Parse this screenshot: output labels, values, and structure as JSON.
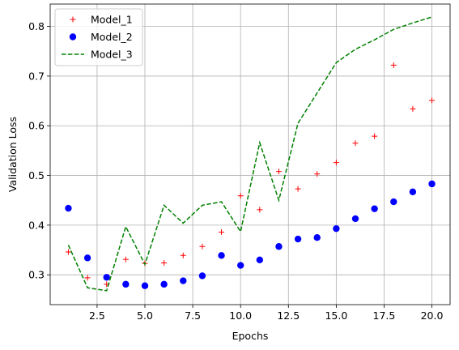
{
  "chart_data": {
    "type": "scatter",
    "xlabel": "Epochs",
    "ylabel": "Validation Loss",
    "xlim": [
      0.05,
      20.95
    ],
    "ylim": [
      0.24,
      0.845
    ],
    "xticks": [
      2.5,
      5.0,
      7.5,
      10.0,
      12.5,
      15.0,
      17.5,
      20.0
    ],
    "xtick_labels": [
      "2.5",
      "5.0",
      "7.5",
      "10.0",
      "12.5",
      "15.0",
      "17.5",
      "20.0"
    ],
    "yticks": [
      0.3,
      0.4,
      0.5,
      0.6,
      0.7,
      0.8
    ],
    "ytick_labels": [
      "0.3",
      "0.4",
      "0.5",
      "0.6",
      "0.7",
      "0.8"
    ],
    "grid": true,
    "legend_position": "top-left",
    "x": [
      1,
      2,
      3,
      4,
      5,
      6,
      7,
      8,
      9,
      10,
      11,
      12,
      13,
      14,
      15,
      16,
      17,
      18,
      19,
      20
    ],
    "series": [
      {
        "name": "Model_1",
        "marker": "plus",
        "color": "#ff0000",
        "values": [
          0.346,
          0.294,
          0.281,
          0.331,
          0.323,
          0.324,
          0.339,
          0.357,
          0.386,
          0.459,
          0.431,
          0.508,
          0.473,
          0.503,
          0.526,
          0.565,
          0.579,
          0.722,
          0.634,
          0.651
        ]
      },
      {
        "name": "Model_2",
        "marker": "circle",
        "color": "#0000ff",
        "values": [
          0.434,
          0.334,
          0.295,
          0.281,
          0.278,
          0.281,
          0.288,
          0.298,
          0.339,
          0.319,
          0.33,
          0.357,
          0.372,
          0.375,
          0.393,
          0.413,
          0.433,
          0.447,
          0.467,
          0.483
        ]
      },
      {
        "name": "Model_3",
        "marker": "dashed-line",
        "color": "#008000",
        "values": [
          0.36,
          0.274,
          0.268,
          0.397,
          0.321,
          0.44,
          0.404,
          0.44,
          0.447,
          0.387,
          0.566,
          0.45,
          0.605,
          0.666,
          0.727,
          0.754,
          0.773,
          0.794,
          0.807,
          0.819
        ]
      }
    ]
  }
}
